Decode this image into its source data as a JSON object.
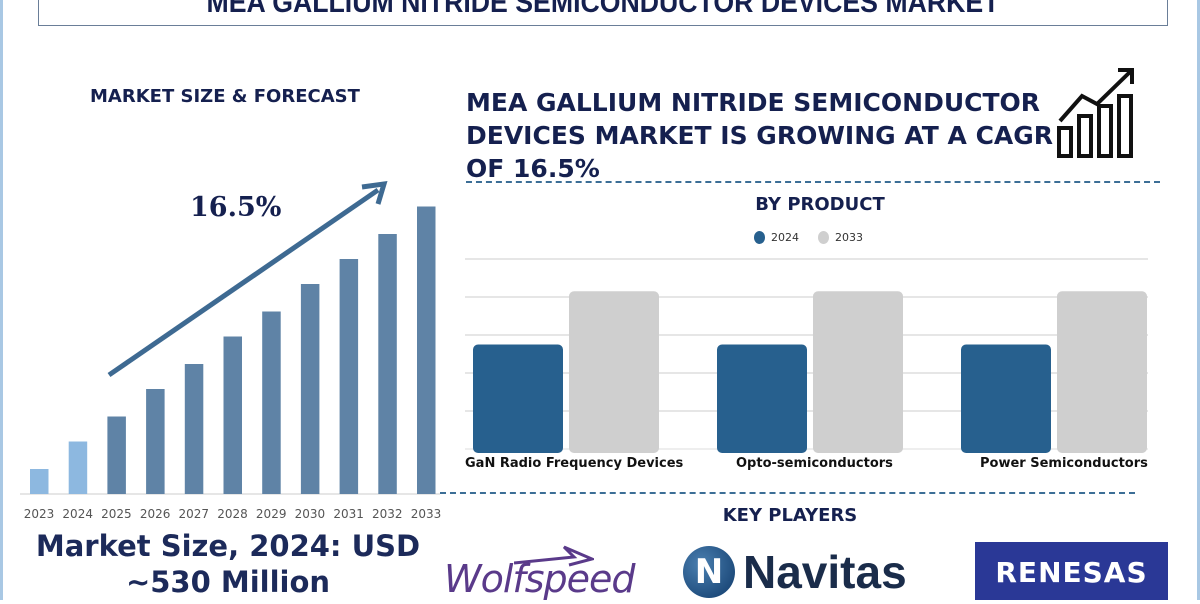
{
  "header": {
    "title": "MEA GALLIUM NITRIDE SEMICONDUCTOR DEVICES MARKET"
  },
  "left": {
    "heading": "MARKET SIZE & FORECAST",
    "cagr_label": "16.5%",
    "market_size_line1": "Market Size, 2024: USD",
    "market_size_line2": "~530 Million"
  },
  "right": {
    "growth_text": "MEA GALLIUM NITRIDE SEMICONDUCTOR DEVICES MARKET IS GROWING AT A CAGR OF 16.5%",
    "growth_icon": "growth-chart-icon",
    "key_players_heading": "KEY PLAYERS",
    "key_players": [
      "Wolfspeed",
      "Navitas",
      "RENESAS"
    ]
  },
  "chart_data": [
    {
      "type": "bar",
      "categories": [
        "2023",
        "2024",
        "2025",
        "2026",
        "2027",
        "2028",
        "2029",
        "2030",
        "2031",
        "2032",
        "2033"
      ],
      "values": [
        1,
        2.1,
        3.1,
        4.2,
        5.2,
        6.3,
        7.3,
        8.4,
        9.4,
        10.4,
        11.5
      ],
      "colors": {
        "historical": "#8db8e0",
        "forecast": "#5f83a6"
      },
      "annotation": "16.5%",
      "grid": false
    },
    {
      "type": "bar",
      "title": "BY PRODUCT",
      "categories": [
        "GaN Radio Frequency Devices",
        "Opto-semiconductors",
        "Power Semiconductors"
      ],
      "series": [
        {
          "name": "2024",
          "values": [
            2.75,
            2.75,
            2.75
          ],
          "color": "#27608e"
        },
        {
          "name": "2033",
          "values": [
            4.15,
            4.15,
            4.15
          ],
          "color": "#cfcfcf"
        }
      ],
      "ylim": [
        0,
        5
      ],
      "grid": true,
      "legend": "top"
    }
  ]
}
